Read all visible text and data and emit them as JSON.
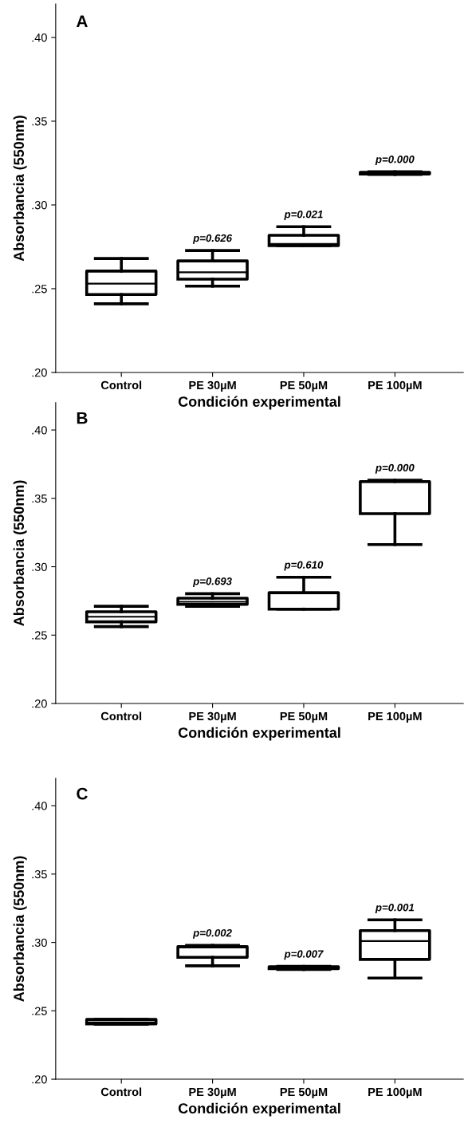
{
  "chart_data": [
    {
      "type": "box",
      "title": "A",
      "xlabel": "Condición experimental",
      "ylabel": "Absorbancia (550nm)",
      "categories": [
        "Control",
        "PE 30µM",
        "PE 50µM",
        "PE 100µM"
      ],
      "boxes": [
        {
          "low": 0.241,
          "q1": 0.2465,
          "median": 0.253,
          "q3": 0.2605,
          "high": 0.268
        },
        {
          "low": 0.2515,
          "q1": 0.2557,
          "median": 0.2598,
          "q3": 0.2666,
          "high": 0.2728
        },
        {
          "low": 0.2757,
          "q1": 0.2757,
          "median": 0.2767,
          "q3": 0.2819,
          "high": 0.287
        },
        {
          "low": 0.3182,
          "q1": 0.3185,
          "median": 0.319,
          "q3": 0.3195,
          "high": 0.3198
        }
      ],
      "ylim": [
        0.2,
        0.42
      ],
      "yticks": [
        {
          "value": 0.2,
          "label": ".20"
        },
        {
          "value": 0.25,
          "label": ".25"
        },
        {
          "value": 0.3,
          "label": ".30"
        },
        {
          "value": 0.35,
          "label": ".35"
        },
        {
          "value": 0.4,
          "label": ".40"
        }
      ],
      "annotations": [
        {
          "text": "p=0.626",
          "x": "PE 30µM",
          "y": 0.2728
        },
        {
          "text": "p=0.021",
          "x": "PE 50µM",
          "y": 0.287
        },
        {
          "text": "p=0.000",
          "x": "PE 100µM",
          "y": 0.3198
        }
      ]
    },
    {
      "type": "box",
      "title": "B",
      "xlabel": "Condición experimental",
      "ylabel": "Absorbancia (550nm)",
      "categories": [
        "Control",
        "PE 30µM",
        "PE 50µM",
        "PE 100µM"
      ],
      "boxes": [
        {
          "low": 0.2562,
          "q1": 0.2597,
          "median": 0.2634,
          "q3": 0.2671,
          "high": 0.2711
        },
        {
          "low": 0.2711,
          "q1": 0.2725,
          "median": 0.2744,
          "q3": 0.277,
          "high": 0.2803
        },
        {
          "low": 0.269,
          "q1": 0.269,
          "median": 0.269,
          "q3": 0.281,
          "high": 0.2923
        },
        {
          "low": 0.3162,
          "q1": 0.3388,
          "median": 0.362,
          "q3": 0.3623,
          "high": 0.3633
        }
      ],
      "ylim": [
        0.2,
        0.42
      ],
      "yticks": [
        {
          "value": 0.2,
          "label": ".20"
        },
        {
          "value": 0.25,
          "label": ".25"
        },
        {
          "value": 0.3,
          "label": ".30"
        },
        {
          "value": 0.35,
          "label": ".35"
        },
        {
          "value": 0.4,
          "label": ".40"
        }
      ],
      "annotations": [
        {
          "text": "p=0.693",
          "x": "PE 30µM",
          "y": 0.2803
        },
        {
          "text": "p=0.610",
          "x": "PE 50µM",
          "y": 0.2923
        },
        {
          "text": "p=0.000",
          "x": "PE 100µM",
          "y": 0.3633
        }
      ]
    },
    {
      "type": "box",
      "title": "C",
      "xlabel": "Condición experimental",
      "ylabel": "Absorbancia (550nm)",
      "categories": [
        "Control",
        "PE 30µM",
        "PE 50µM",
        "PE 100µM"
      ],
      "boxes": [
        {
          "low": 0.2402,
          "q1": 0.2404,
          "median": 0.2416,
          "q3": 0.2437,
          "high": 0.2437
        },
        {
          "low": 0.2829,
          "q1": 0.2891,
          "median": 0.2963,
          "q3": 0.2969,
          "high": 0.2979
        },
        {
          "low": 0.2802,
          "q1": 0.2808,
          "median": 0.2814,
          "q3": 0.2823,
          "high": 0.2825
        },
        {
          "low": 0.274,
          "q1": 0.2876,
          "median": 0.301,
          "q3": 0.3087,
          "high": 0.3165
        }
      ],
      "ylim": [
        0.2,
        0.42
      ],
      "yticks": [
        {
          "value": 0.2,
          "label": ".20"
        },
        {
          "value": 0.25,
          "label": ".25"
        },
        {
          "value": 0.3,
          "label": ".30"
        },
        {
          "value": 0.35,
          "label": ".35"
        },
        {
          "value": 0.4,
          "label": ".40"
        }
      ],
      "annotations": [
        {
          "text": "p=0.002",
          "x": "PE 30µM",
          "y": 0.2979
        },
        {
          "text": "p=0.007",
          "x": "PE 50µM",
          "y": 0.2825
        },
        {
          "text": "p=0.001",
          "x": "PE 100µM",
          "y": 0.3165
        }
      ]
    }
  ]
}
